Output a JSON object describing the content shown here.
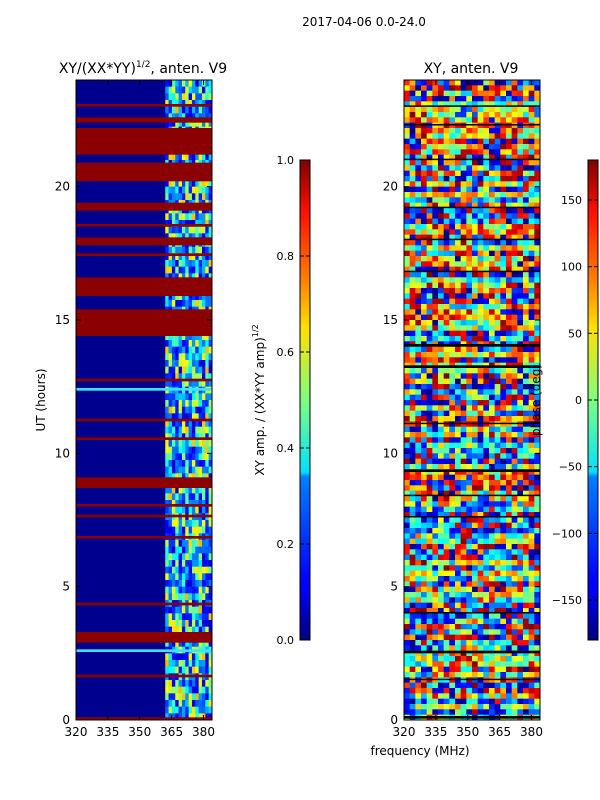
{
  "figure": {
    "suptitle": "2017-04-06 0.0-24.0",
    "xlabel": "frequency (MHz)"
  },
  "chart_data": [
    {
      "type": "heatmap",
      "title_text": "XY/(XX*YY)",
      "title_sup": "1/2",
      "title_suffix": ", anten. V9",
      "ylabel": "UT (hours)",
      "xlim": [
        320,
        384
      ],
      "ylim": [
        0,
        24
      ],
      "xticks": [
        320,
        335,
        350,
        365,
        380
      ],
      "yticks": [
        0,
        5,
        10,
        15,
        20
      ],
      "colorbar": {
        "label_text": "XY amp. / (XX*YY amp)",
        "label_sup": "1/2",
        "range": [
          0.0,
          1.0
        ],
        "ticks": [
          "0.0",
          "0.2",
          "0.4",
          "0.6",
          "0.8",
          "1.0"
        ],
        "tick_values": [
          0.0,
          0.2,
          0.4,
          0.6,
          0.8,
          1.0
        ]
      },
      "flagged_ut_bands": [
        [
          0.0,
          0.1
        ],
        [
          1.6,
          1.7
        ],
        [
          2.9,
          3.3
        ],
        [
          4.3,
          4.4
        ],
        [
          6.8,
          6.9
        ],
        [
          7.6,
          7.7
        ],
        [
          8.0,
          8.1
        ],
        [
          8.7,
          9.1
        ],
        [
          10.5,
          10.6
        ],
        [
          11.2,
          11.3
        ],
        [
          12.7,
          12.8
        ],
        [
          14.4,
          15.4
        ],
        [
          15.9,
          16.6
        ],
        [
          17.4,
          17.5
        ],
        [
          17.8,
          18.1
        ],
        [
          18.5,
          18.6
        ],
        [
          19.1,
          19.4
        ],
        [
          20.2,
          20.9
        ],
        [
          21.2,
          22.2
        ],
        [
          22.4,
          22.6
        ],
        [
          23.0,
          23.1
        ]
      ],
      "bright_ut_bands": [
        [
          2.55,
          2.65
        ],
        [
          12.35,
          12.45
        ]
      ],
      "bright_freq_range": [
        362,
        384
      ]
    },
    {
      "type": "heatmap",
      "title": "XY, anten. V9",
      "xlim": [
        320,
        384
      ],
      "ylim": [
        0,
        24
      ],
      "xticks": [
        320,
        335,
        350,
        365,
        380
      ],
      "yticks": [
        0,
        5,
        10,
        15,
        20
      ],
      "colorbar": {
        "label": "phase (deg)",
        "range": [
          -180,
          180
        ],
        "ticks": [
          "−150",
          "−100",
          "−50",
          "0",
          "50",
          "100",
          "150"
        ],
        "tick_values": [
          -150,
          -100,
          -50,
          0,
          50,
          100,
          150
        ]
      },
      "flagged_ut_bands": [
        [
          0.05,
          0.15
        ],
        [
          1.5,
          1.55
        ],
        [
          2.5,
          2.6
        ],
        [
          4.0,
          4.05
        ],
        [
          7.6,
          7.65
        ],
        [
          8.4,
          8.45
        ],
        [
          9.3,
          9.4
        ],
        [
          11.1,
          11.15
        ],
        [
          13.2,
          13.3
        ],
        [
          14.0,
          14.1
        ],
        [
          16.8,
          16.85
        ],
        [
          18.0,
          18.05
        ],
        [
          19.2,
          19.25
        ],
        [
          21.0,
          21.05
        ],
        [
          22.3,
          22.35
        ],
        [
          23.0,
          23.05
        ]
      ]
    }
  ]
}
